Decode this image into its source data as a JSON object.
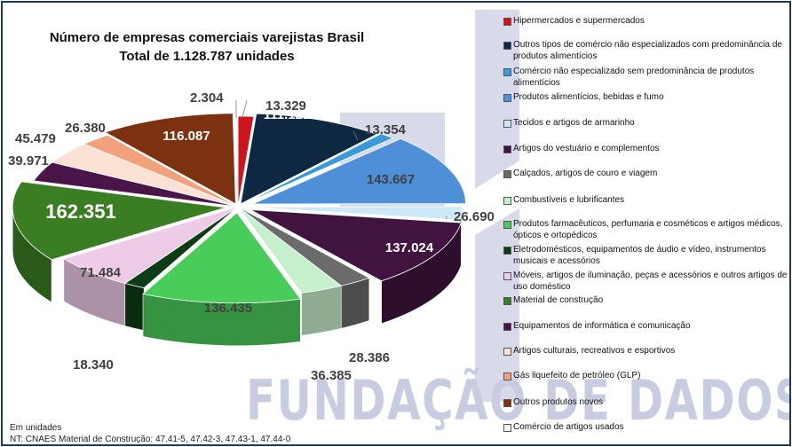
{
  "title_line1": "Número de empresas comerciais varejistas Brasil",
  "title_line2": "Total de 1.128.787 unidades",
  "watermark": "FUNDAÇÃO DE DADOS",
  "notes": {
    "unit_note": "Em unidades",
    "source_note": "NT: CNAES Material de Construção: 47.41-5, 47.42-3, 47.43-1, 47.44-0"
  },
  "chart_data": {
    "type": "pie",
    "style": "3d-exploded",
    "total": 1128787,
    "legend_position": "right",
    "slices": [
      {
        "label": "Hipermercados e supermercados",
        "value": 13329,
        "value_label": "13.329",
        "color": "#d0141c"
      },
      {
        "label": "Outros tipos de comércio não especializados com predominância de produtos alimentícios",
        "value": 111121,
        "value_label": "111.121",
        "color": "#0e2841"
      },
      {
        "label": "Comércio não especializado sem predominância de produtos alimentícios",
        "value": 13354,
        "value_label": "13.354",
        "color": "#3a9ad9"
      },
      {
        "label": "Produtos alimentícios, bebidas e fumo",
        "value": 143667,
        "value_label": "143.667",
        "color": "#4f8fd8"
      },
      {
        "label": "Tecidos e artigos de armarinho",
        "value": 26690,
        "value_label": "26.690",
        "color": "#cde8f6"
      },
      {
        "label": "Artigos do vestuário e complementos",
        "value": 137024,
        "value_label": "137.024",
        "color": "#40143f"
      },
      {
        "label": "Calçados, artigos de couro e viagem",
        "value": 28386,
        "value_label": "28.386",
        "color": "#6b6b6b"
      },
      {
        "label": "Combustíveis e lubrificantes",
        "value": 36385,
        "value_label": "36.385",
        "color": "#c6efcc"
      },
      {
        "label": "Produtos farmacêuticos, perfumaria e cosméticos e artigos médicos, ópticos e ortopédicos",
        "value": 136435,
        "value_label": "136.435",
        "color": "#49cc5a"
      },
      {
        "label": "Eletrodomésticos, equipamentos de áudio e vídeo, instrumentos musicais e acessórios",
        "value": 18340,
        "value_label": "18.340",
        "color": "#0c3d16"
      },
      {
        "label": "Móveis, artigos de iluminação, peças e acessórios e outros artigos de uso doméstico",
        "value": 71484,
        "value_label": "71.484",
        "color": "#eecbe7"
      },
      {
        "label": "Material de construção",
        "value": 162351,
        "value_label": "162.351",
        "color": "#3a7d23"
      },
      {
        "label": "Equipamentos de informática e comunicação",
        "value": 39971,
        "value_label": "39.971",
        "color": "#4a1548"
      },
      {
        "label": "Artigos culturais, recreativos e esportivos",
        "value": 45479,
        "value_label": "45.479",
        "color": "#fbe2d5"
      },
      {
        "label": "Gás liquefeito de petróleo (GLP)",
        "value": 26380,
        "value_label": "26.380",
        "color": "#f1a27c"
      },
      {
        "label": "Outros produtos novos",
        "value": 116087,
        "value_label": "116.087",
        "color": "#7c3210"
      },
      {
        "label": "Comércio de artigos usados",
        "value": 2304,
        "value_label": "2.304",
        "color": "#f7f7f7"
      }
    ]
  }
}
